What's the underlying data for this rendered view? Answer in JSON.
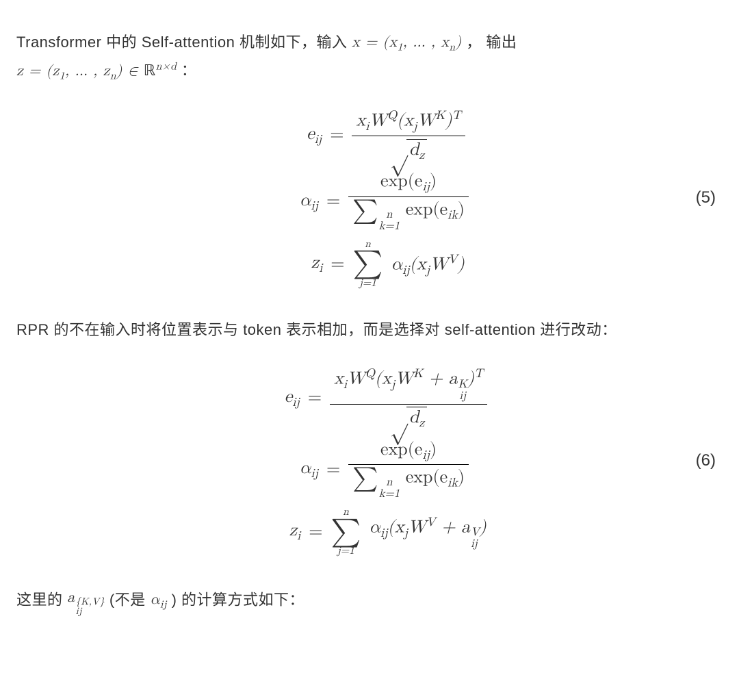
{
  "para1_a": "Transformer 中的 Self-attention 机制如下，输入 ",
  "para1_b": " ， 输出",
  "para1_c": " ：",
  "inline_x": "x = (x",
  "inline_x_sub1": "1",
  "inline_x_mid": ", … , x",
  "inline_x_subn": "n",
  "inline_x_end": ")",
  "inline_z": "z = (z",
  "inline_z_sub1": "1",
  "inline_z_mid": ", … , z",
  "inline_z_subn": "n",
  "inline_z_end": ") ∈ ",
  "inline_R": "ℝ",
  "inline_R_sup": "n×d",
  "eq5_num": "(5)",
  "eq5_r1_lhs": "e",
  "eq5_r1_lhs_sub": "ij",
  "eq5_r1_num_a": "x",
  "eq5_r1_num_a_sub": "i",
  "eq5_r1_num_b": "W",
  "eq5_r1_num_b_sup": "Q",
  "eq5_r1_num_c": "(x",
  "eq5_r1_num_c_sub": "j",
  "eq5_r1_num_d": "W",
  "eq5_r1_num_d_sup": "K",
  "eq5_r1_num_e": ")",
  "eq5_r1_num_e_sup": "T",
  "eq5_r1_den_rad": "d",
  "eq5_r1_den_rad_sub": "z",
  "eq5_r2_lhs": "α",
  "eq5_r2_lhs_sub": "ij",
  "eq5_r2_num_a": "exp(e",
  "eq5_r2_num_a_sub": "ij",
  "eq5_r2_num_b": ")",
  "eq5_r2_den_sum_lo": "k=1",
  "eq5_r2_den_sum_hi": "n",
  "eq5_r2_den_b": " exp(e",
  "eq5_r2_den_b_sub": "ik",
  "eq5_r2_den_c": ")",
  "eq5_r3_lhs": "z",
  "eq5_r3_lhs_sub": "i",
  "eq5_r3_sum_lo": "j=1",
  "eq5_r3_sum_hi": "n",
  "eq5_r3_a": "α",
  "eq5_r3_a_sub": "ij",
  "eq5_r3_b": "(x",
  "eq5_r3_b_sub": "j",
  "eq5_r3_c": "W",
  "eq5_r3_c_sup": "V",
  "eq5_r3_d": ")",
  "para2": "RPR 的不在输入时将位置表示与 token 表示相加，而是选择对 self-attention 进行改动：",
  "eq6_num": "(6)",
  "eq6_r1_lhs": "e",
  "eq6_r1_lhs_sub": "ij",
  "eq6_r1_num_a": "x",
  "eq6_r1_num_a_sub": "i",
  "eq6_r1_num_b": "W",
  "eq6_r1_num_b_sup": "Q",
  "eq6_r1_num_c": "(x",
  "eq6_r1_num_c_sub": "j",
  "eq6_r1_num_d": "W",
  "eq6_r1_num_d_sup": "K",
  "eq6_r1_num_e": " + a",
  "eq6_r1_num_e_sup": "K",
  "eq6_r1_num_e_sub": "ij",
  "eq6_r1_num_f": ")",
  "eq6_r1_num_f_sup": "T",
  "eq6_r3_a": "α",
  "eq6_r3_a_sub": "ij",
  "eq6_r3_b": "(x",
  "eq6_r3_b_sub": "j",
  "eq6_r3_c": "W",
  "eq6_r3_c_sup": "V",
  "eq6_r3_d": " + a",
  "eq6_r3_d_sup": "V",
  "eq6_r3_d_sub": "ij",
  "eq6_r3_e": ")",
  "para3_a": "这里的 ",
  "para3_b": " (不是 ",
  "para3_c": " ) 的计算方式如下：",
  "inline_aKV": "a",
  "inline_aKV_sup": "{K,V}",
  "inline_aKV_sub": "ij",
  "inline_alpha": "α",
  "inline_alpha_sub": "ij",
  "equals": " = ",
  "sigma": "∑",
  "radsym": "√"
}
